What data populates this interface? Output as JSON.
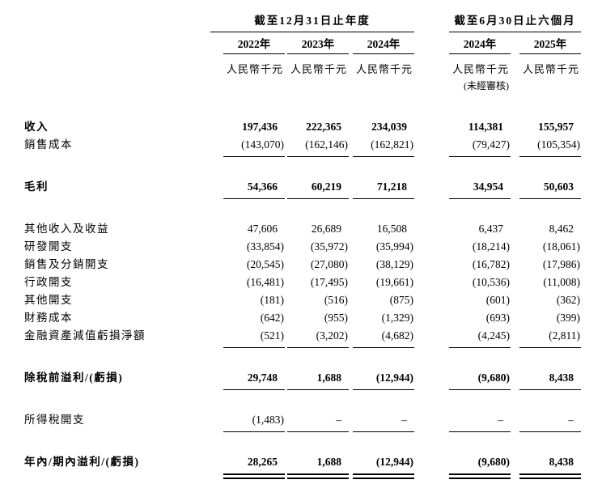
{
  "header": {
    "annual_group": "截至12月31日止年度",
    "interim_group": "截至6月30日止六個月",
    "years_annual": [
      "2022年",
      "2023年",
      "2024年"
    ],
    "years_interim": [
      "2024年",
      "2025年"
    ],
    "unit": "人民幣千元",
    "unaudited_note": "(未經審核)"
  },
  "table": {
    "rows": [
      {
        "label": "收入",
        "bold": true,
        "values": [
          "197,436",
          "222,365",
          "234,039",
          "114,381",
          "155,957"
        ]
      },
      {
        "label": "銷售成本",
        "values": [
          "(143,070)",
          "(162,146)",
          "(162,821)",
          "(79,427)",
          "(105,354)"
        ],
        "rule_after": true
      },
      {
        "spacer": true
      },
      {
        "label": "毛利",
        "bold": true,
        "values": [
          "54,366",
          "60,219",
          "71,218",
          "34,954",
          "50,603"
        ],
        "rule_after": true
      },
      {
        "spacer": true
      },
      {
        "label": "其他收入及收益",
        "values": [
          "47,606",
          "26,689",
          "16,508",
          "6,437",
          "8,462"
        ]
      },
      {
        "label": "研發開支",
        "values": [
          "(33,854)",
          "(35,972)",
          "(35,994)",
          "(18,214)",
          "(18,061)"
        ]
      },
      {
        "label": "銷售及分銷開支",
        "values": [
          "(20,545)",
          "(27,080)",
          "(38,129)",
          "(16,782)",
          "(17,986)"
        ]
      },
      {
        "label": "行政開支",
        "values": [
          "(16,481)",
          "(17,495)",
          "(19,661)",
          "(10,536)",
          "(11,008)"
        ]
      },
      {
        "label": "其他開支",
        "values": [
          "(181)",
          "(516)",
          "(875)",
          "(601)",
          "(362)"
        ]
      },
      {
        "label": "財務成本",
        "values": [
          "(642)",
          "(955)",
          "(1,329)",
          "(693)",
          "(399)"
        ]
      },
      {
        "label": "金融資產減值虧損淨額",
        "values": [
          "(521)",
          "(3,202)",
          "(4,682)",
          "(4,245)",
          "(2,811)"
        ],
        "rule_after": true
      },
      {
        "spacer": true
      },
      {
        "label": "除稅前溢利/(虧損)",
        "bold": true,
        "values": [
          "29,748",
          "1,688",
          "(12,944)",
          "(9,680)",
          "8,438"
        ],
        "rule_after": true
      },
      {
        "spacer": true
      },
      {
        "label": "所得稅開支",
        "values": [
          "(1,483)",
          "–",
          "–",
          "–",
          "–"
        ],
        "rule_after": true
      },
      {
        "spacer": true
      },
      {
        "label": "年內/期內溢利/(虧損)",
        "bold": true,
        "values": [
          "28,265",
          "1,688",
          "(12,944)",
          "(9,680)",
          "8,438"
        ],
        "double_rule_after": true
      }
    ]
  }
}
